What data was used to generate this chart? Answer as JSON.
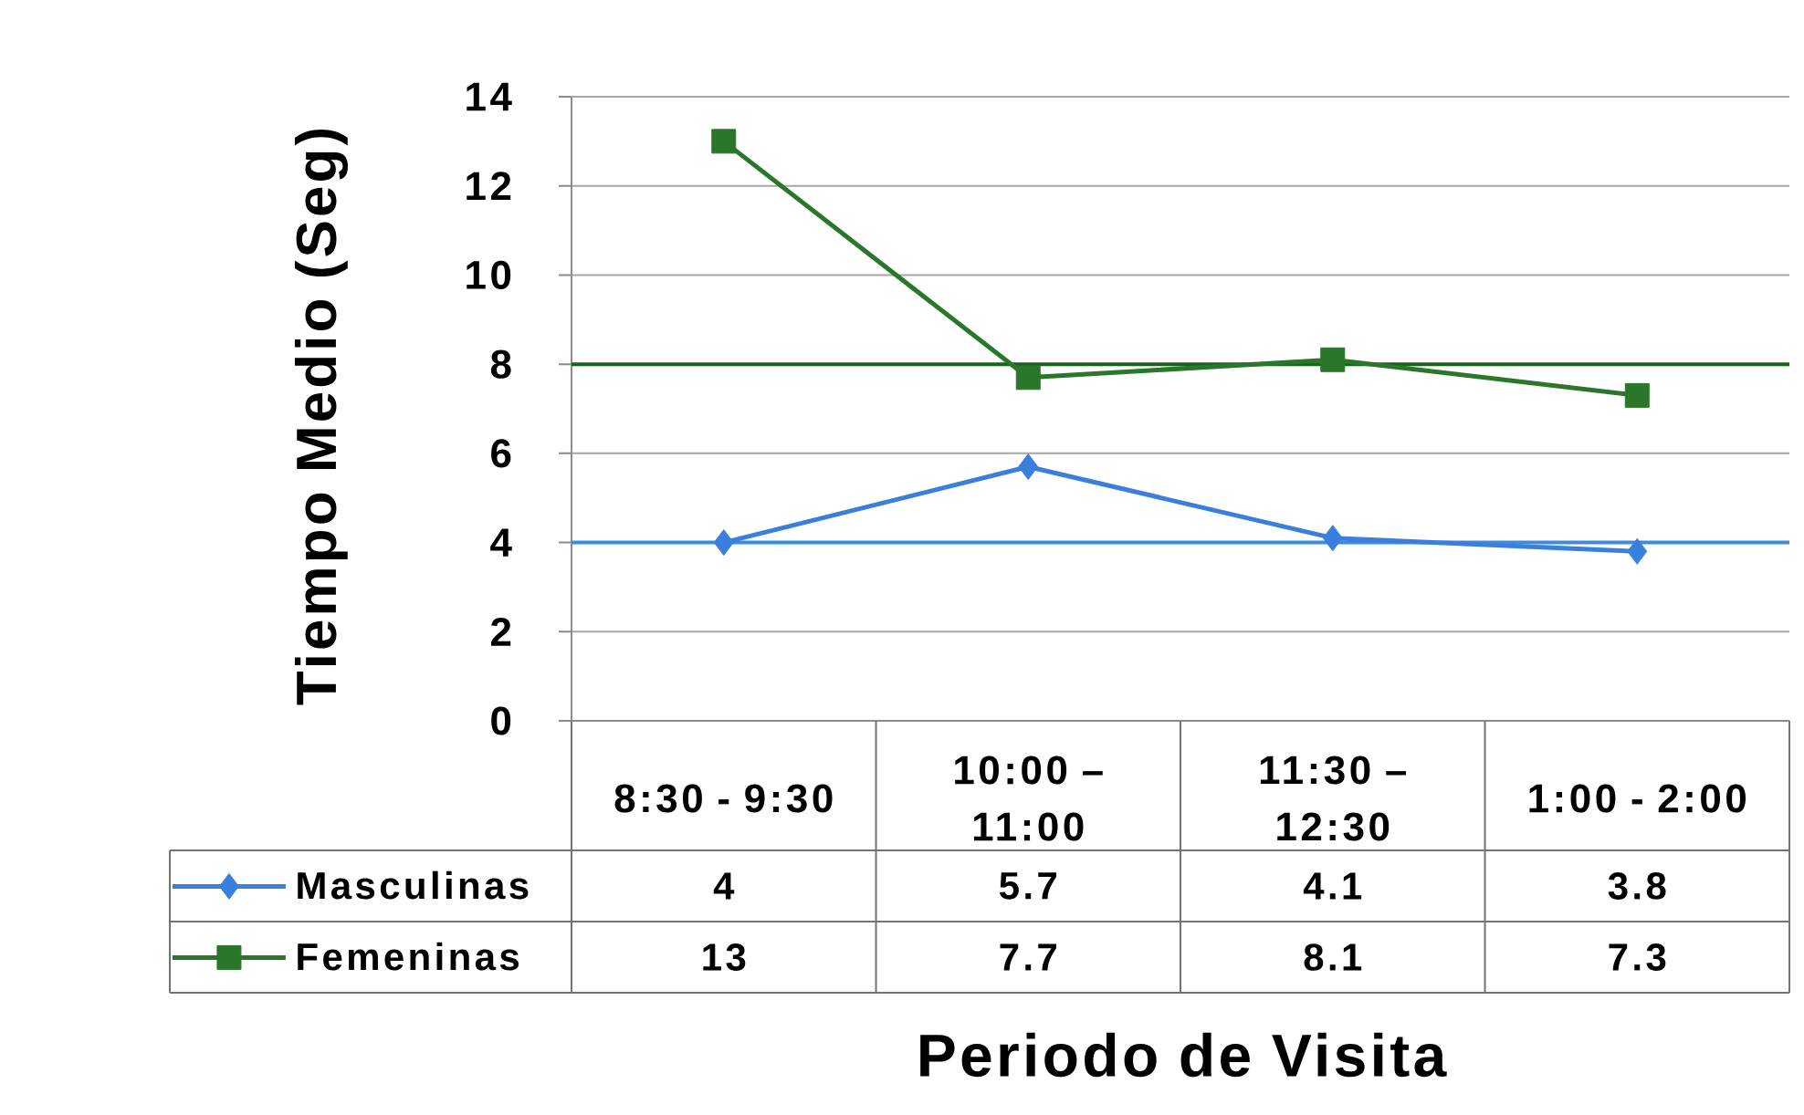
{
  "chart_data": {
    "type": "line",
    "ylabel": "Tiempo Medio (Seg)",
    "xlabel": "Periodo de Visita",
    "categories": [
      "8:30 - 9:30",
      "10:00 – 11:00",
      "11:30 – 12:30",
      "1:00 - 2:00"
    ],
    "series": [
      {
        "name": "Masculinas",
        "color": "#3a7fde",
        "values": [
          4,
          5.7,
          4.1,
          3.8
        ],
        "marker": "diamond"
      },
      {
        "name": "Femeninas",
        "color": "#2a762a",
        "values": [
          13,
          7.7,
          8.1,
          7.3
        ],
        "marker": "square"
      }
    ],
    "ylim": [
      0,
      14
    ],
    "yticks": [
      0,
      2,
      4,
      6,
      8,
      10,
      12,
      14
    ],
    "grid": "y",
    "legend": "bottom left",
    "data_labels": true,
    "line_style": "solid",
    "ref_lines": [
      {
        "axis": "y",
        "value": 8,
        "color": "#136613"
      },
      {
        "axis": "y",
        "value": 4,
        "color": "#3b8be0"
      }
    ]
  }
}
